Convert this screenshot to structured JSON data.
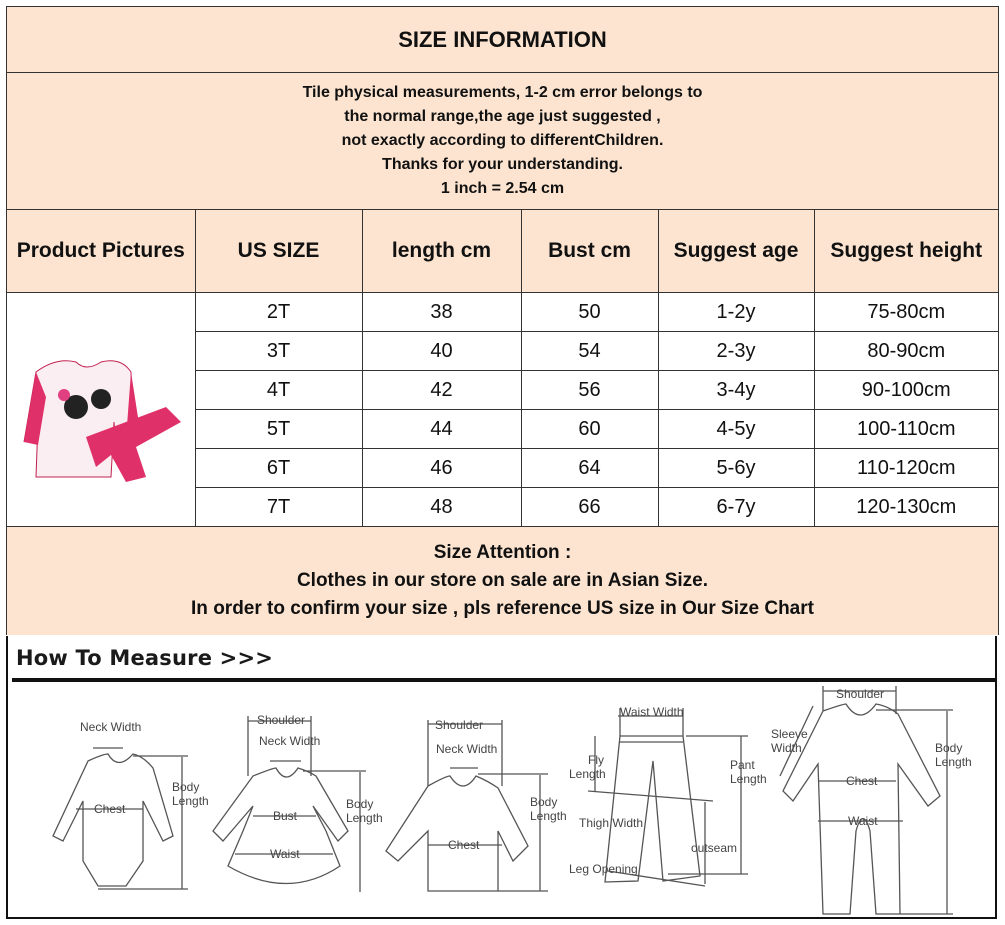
{
  "title": "SIZE INFORMATION",
  "info_lines": [
    "Tile physical measurements, 1-2 cm error belongs to",
    "the normal range,the age just suggested ,",
    "not exactly according to differentChildren.",
    "Thanks for your understanding.",
    "1 inch = 2.54 cm"
  ],
  "table": {
    "headers": [
      "Product Pictures",
      "US SIZE",
      "length cm",
      "Bust cm",
      "Suggest age",
      "Suggest height"
    ],
    "rows": [
      [
        "2T",
        "38",
        "50",
        "1-2y",
        "75-80cm"
      ],
      [
        "3T",
        "40",
        "54",
        "2-3y",
        "80-90cm"
      ],
      [
        "4T",
        "42",
        "56",
        "3-4y",
        "90-100cm"
      ],
      [
        "5T",
        "44",
        "60",
        "4-5y",
        "100-110cm"
      ],
      [
        "6T",
        "46",
        "64",
        "5-6y",
        "110-120cm"
      ],
      [
        "7T",
        "48",
        "66",
        "6-7y",
        "120-130cm"
      ]
    ]
  },
  "attention": {
    "heading": "Size Attention :",
    "line1": "Clothes in our store on sale are in Asian Size.",
    "line2": "In order to confirm your size , pls reference US size in Our Size Chart"
  },
  "how_to_measure": {
    "title": "How To Measure >>>",
    "bodysuit": {
      "neck": "Neck Width",
      "chest": "Chest",
      "body1": "Body",
      "body2": "Length"
    },
    "dress": {
      "shoulder": "Shoulder",
      "neck": "Neck Width",
      "bust": "Bust",
      "waist": "Waist",
      "body1": "Body",
      "body2": "Length"
    },
    "shirt": {
      "shoulder": "Shoulder",
      "neck": "Neck Width",
      "chest": "Chest",
      "body1": "Body",
      "body2": "Length"
    },
    "pants": {
      "waist": "Waist Width",
      "fly1": "Fly",
      "fly2": "Length",
      "pant1": "Pant",
      "pant2": "Length",
      "thigh": "Thigh Width",
      "outseam": "outseam",
      "leg": "Leg Opening"
    },
    "romper": {
      "shoulder": "Shoulder",
      "sleeve1": "Sleeve",
      "sleeve2": "Width",
      "chest": "Chest",
      "waist": "Waist",
      "body1": "Body",
      "body2": "Length"
    }
  },
  "colors": {
    "header_bg": "#fce4d0",
    "border": "#333333",
    "product_pink": "#e0306a"
  }
}
